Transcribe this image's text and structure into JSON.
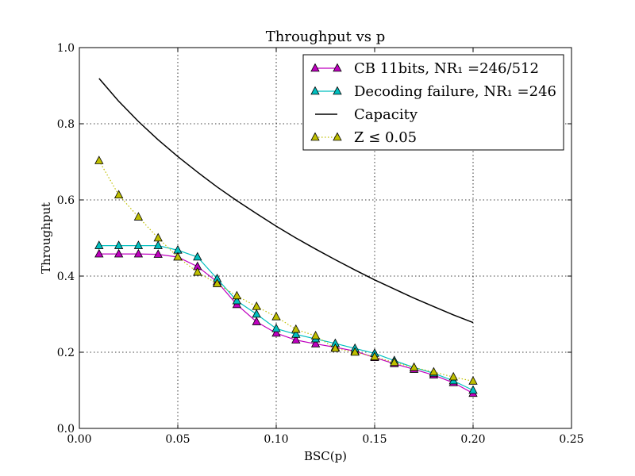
{
  "chart_data": {
    "type": "line",
    "title": "Throughput vs p",
    "xlabel": "BSC(p)",
    "ylabel": "Throughput",
    "xlim": [
      0.0,
      0.25
    ],
    "ylim": [
      0.0,
      1.0
    ],
    "xticks": [
      "0.00",
      "0.05",
      "0.10",
      "0.15",
      "0.20",
      "0.25"
    ],
    "yticks": [
      "0.0",
      "0.2",
      "0.4",
      "0.6",
      "0.8",
      "1.0"
    ],
    "grid": true,
    "legend_position": "top-right",
    "series": [
      {
        "name": "CB 11bits, NR₁ =246/512",
        "color": "#bf00bf",
        "marker": "triangle",
        "line_style": "solid",
        "x": [
          0.01,
          0.02,
          0.03,
          0.04,
          0.05,
          0.06,
          0.07,
          0.08,
          0.09,
          0.1,
          0.11,
          0.12,
          0.13,
          0.14,
          0.15,
          0.16,
          0.17,
          0.18,
          0.19,
          0.2
        ],
        "y": [
          0.458,
          0.458,
          0.458,
          0.457,
          0.45,
          0.425,
          0.385,
          0.325,
          0.28,
          0.25,
          0.232,
          0.222,
          0.213,
          0.203,
          0.186,
          0.17,
          0.155,
          0.14,
          0.12,
          0.092
        ]
      },
      {
        "name": "Decoding failure, NR₁ =246",
        "color": "#00bfbf",
        "marker": "triangle",
        "line_style": "solid",
        "x": [
          0.01,
          0.02,
          0.03,
          0.04,
          0.05,
          0.06,
          0.07,
          0.08,
          0.09,
          0.1,
          0.11,
          0.12,
          0.13,
          0.14,
          0.15,
          0.16,
          0.17,
          0.18,
          0.19,
          0.2
        ],
        "y": [
          0.48,
          0.48,
          0.48,
          0.48,
          0.468,
          0.45,
          0.393,
          0.335,
          0.3,
          0.262,
          0.247,
          0.235,
          0.223,
          0.21,
          0.197,
          0.178,
          0.16,
          0.145,
          0.125,
          0.1
        ]
      },
      {
        "name": "Capacity",
        "color": "#000000",
        "marker": "none",
        "line_style": "solid",
        "x": [
          0.01,
          0.02,
          0.03,
          0.04,
          0.05,
          0.06,
          0.07,
          0.08,
          0.09,
          0.1,
          0.11,
          0.12,
          0.13,
          0.14,
          0.15,
          0.16,
          0.17,
          0.18,
          0.19,
          0.2
        ],
        "y": [
          0.919,
          0.859,
          0.806,
          0.758,
          0.714,
          0.673,
          0.634,
          0.598,
          0.564,
          0.531,
          0.5,
          0.471,
          0.443,
          0.416,
          0.39,
          0.366,
          0.342,
          0.32,
          0.298,
          0.278
        ]
      },
      {
        "name": "Z ≤ 0.05",
        "color": "#bfbf00",
        "marker": "triangle",
        "line_style": "dotted",
        "x": [
          0.01,
          0.02,
          0.03,
          0.04,
          0.05,
          0.06,
          0.07,
          0.08,
          0.09,
          0.1,
          0.11,
          0.12,
          0.13,
          0.14,
          0.15,
          0.16,
          0.17,
          0.18,
          0.19,
          0.2
        ],
        "y": [
          0.703,
          0.613,
          0.555,
          0.5,
          0.45,
          0.41,
          0.38,
          0.348,
          0.32,
          0.293,
          0.26,
          0.243,
          0.21,
          0.2,
          0.188,
          0.173,
          0.16,
          0.148,
          0.135,
          0.124
        ]
      }
    ]
  }
}
